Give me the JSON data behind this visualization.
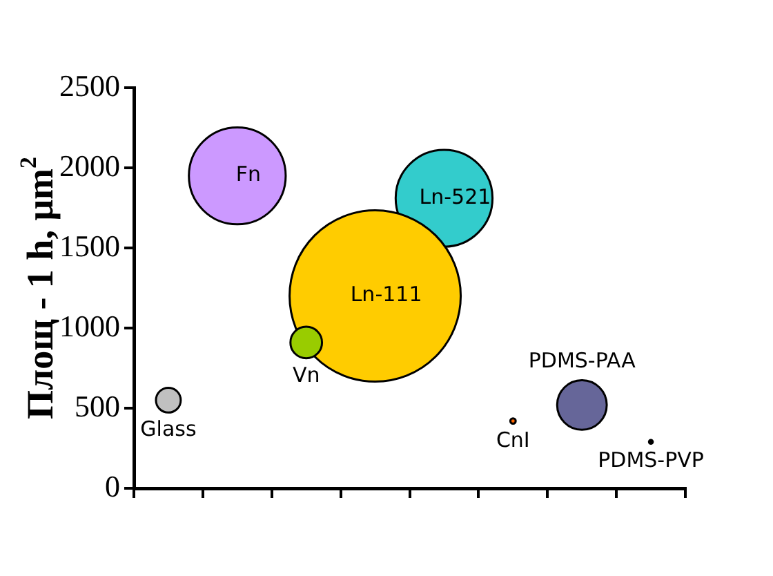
{
  "chart_data": {
    "type": "bubble",
    "ylabel": "Площ - 1 h, μm$^{2}$",
    "categories": [
      null,
      null,
      null,
      null,
      null,
      null,
      null,
      null
    ],
    "ylim": [
      0,
      2500
    ],
    "yticks": [
      0,
      500,
      1000,
      1500,
      2000,
      2500
    ],
    "tick_labels": "y",
    "grid": false,
    "legend": false,
    "series": [
      {
        "name": "Glass",
        "color": "#c0c0c0",
        "values": [
          550,
          null,
          null,
          null,
          null,
          null,
          null,
          null
        ],
        "sizes": [
          0.021,
          null,
          null,
          null,
          null,
          null,
          null,
          null
        ]
      },
      {
        "name": "Fn",
        "color": "#cc99ff",
        "values": [
          null,
          1950,
          null,
          null,
          null,
          null,
          null,
          null
        ],
        "sizes": [
          null,
          0.32,
          null,
          null,
          null,
          null,
          null,
          null
        ]
      },
      {
        "name": "Vn",
        "color": "#99cc00",
        "values": [
          null,
          null,
          910,
          null,
          null,
          null,
          null,
          null
        ],
        "sizes": [
          null,
          null,
          0.034,
          null,
          null,
          null,
          null,
          null
        ]
      },
      {
        "name": "Ln-111",
        "color": "#ffcc00",
        "values": [
          null,
          null,
          null,
          1200,
          null,
          null,
          null,
          null
        ],
        "sizes": [
          null,
          null,
          null,
          1,
          null,
          null,
          null,
          null
        ]
      },
      {
        "name": "Ln-521",
        "color": "#33cccc",
        "values": [
          null,
          null,
          null,
          null,
          1810,
          null,
          null,
          null
        ],
        "sizes": [
          null,
          null,
          null,
          null,
          0.32,
          null,
          null,
          null
        ]
      },
      {
        "name": "CnI",
        "color": "#ff6600",
        "values": [
          null,
          null,
          null,
          null,
          null,
          420,
          null,
          null
        ],
        "sizes": [
          null,
          null,
          null,
          null,
          null,
          0.001,
          null,
          null
        ]
      },
      {
        "name": "PDMS-PAA",
        "color": "#666699",
        "values": [
          null,
          null,
          null,
          null,
          null,
          null,
          520,
          null
        ],
        "sizes": [
          null,
          null,
          null,
          null,
          null,
          null,
          0.084,
          null
        ]
      },
      {
        "name": "PDMS-PVP",
        "color": "#000000",
        "values": [
          null,
          null,
          null,
          null,
          null,
          null,
          null,
          290
        ],
        "sizes": [
          null,
          null,
          null,
          null,
          null,
          null,
          null,
          0.0005
        ]
      }
    ]
  }
}
